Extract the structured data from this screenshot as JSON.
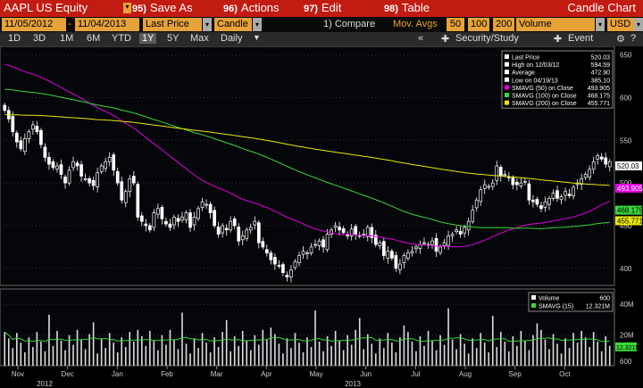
{
  "header": {
    "security": "AAPL US Equity",
    "menu": [
      {
        "num": "95)",
        "label": "Save As"
      },
      {
        "num": "96)",
        "label": "Actions"
      },
      {
        "num": "97)",
        "label": "Edit"
      },
      {
        "num": "98)",
        "label": "Table"
      }
    ],
    "title": "Candle Chart"
  },
  "controls": {
    "start_date": "11/05/2012",
    "end_date": "11/04/2013",
    "price_field": "Last Price",
    "chart_type": "Candle",
    "compare": "1) Compare",
    "mov_avgs_label": "Mov. Avgs",
    "mov_avgs": [
      "50",
      "100",
      "200"
    ],
    "volume_field": "Volume",
    "currency": "USD"
  },
  "toolbar": {
    "ranges": [
      "1D",
      "3D",
      "1M",
      "6M",
      "YTD",
      "1Y",
      "5Y",
      "Max"
    ],
    "active_range": "1Y",
    "period": "Daily",
    "collapse": "«",
    "security_study": "Security/Study",
    "event": "Event"
  },
  "colors": {
    "price": "#ffffff",
    "sma50": "#e000e0",
    "sma100": "#3ad63a",
    "sma200": "#e8e800",
    "vol_sma": "#3ad63a"
  },
  "legend_price": [
    {
      "label": "Last Price",
      "value": "520.03"
    },
    {
      "label": "High on 12/03/12",
      "value": "594.59"
    },
    {
      "label": "Average",
      "value": "472.90"
    },
    {
      "label": "Low on 04/19/13",
      "value": "385.10"
    },
    {
      "label": "SMAVG (50) on Close",
      "value": "493.905",
      "color": "#e000e0"
    },
    {
      "label": "SMAVG (100) on Close",
      "value": "468.175",
      "color": "#3ad63a"
    },
    {
      "label": "SMAVG (200) on Close",
      "value": "455.771",
      "color": "#e8e800"
    }
  ],
  "legend_volume": [
    {
      "label": "Volume",
      "value": "600"
    },
    {
      "label": "SMAVG (15)",
      "value": "12.321M",
      "color": "#3ad63a"
    }
  ],
  "price_axis": {
    "ticks": [
      "650",
      "600",
      "550",
      "500",
      "450",
      "400"
    ]
  },
  "price_tags": [
    {
      "value": "520.03",
      "price": 520.03,
      "bg": "#ffffff",
      "fg": "#000000"
    },
    {
      "value": "493.905",
      "price": 493.905,
      "bg": "#e000e0",
      "fg": "#ffffff"
    },
    {
      "value": "468.175",
      "price": 468.175,
      "bg": "#3ad63a",
      "fg": "#000000"
    },
    {
      "value": "455.771",
      "price": 455.771,
      "bg": "#e8e800",
      "fg": "#000000"
    }
  ],
  "volume_axis": {
    "ticks": [
      "40M",
      "20M",
      "600"
    ]
  },
  "volume_tag": {
    "value": "12.321M"
  },
  "x_axis": {
    "months": [
      "Nov",
      "Dec",
      "Jan",
      "Feb",
      "Mar",
      "Apr",
      "May",
      "Jun",
      "Jul",
      "Aug",
      "Sep",
      "Oct"
    ],
    "years": [
      "2012",
      "2013"
    ]
  },
  "chart_data": {
    "type": "candlestick",
    "ylim": [
      380,
      660
    ],
    "close": [
      585,
      575,
      560,
      548,
      540,
      552,
      560,
      568,
      560,
      545,
      530,
      522,
      518,
      520,
      510,
      500,
      515,
      525,
      520,
      508,
      505,
      500,
      497,
      512,
      520,
      525,
      530,
      515,
      500,
      480,
      490,
      505,
      500,
      460,
      455,
      450,
      445,
      465,
      470,
      458,
      452,
      448,
      460,
      455,
      460,
      465,
      448,
      460,
      470,
      478,
      475,
      465,
      450,
      440,
      450,
      445,
      455,
      450,
      432,
      438,
      445,
      448,
      455,
      430,
      425,
      418,
      410,
      405,
      403,
      395,
      390,
      398,
      408,
      415,
      420,
      418,
      425,
      428,
      432,
      425,
      440,
      445,
      450,
      445,
      442,
      438,
      446,
      440,
      438,
      440,
      448,
      436,
      428,
      430,
      415,
      420,
      412,
      400,
      405,
      415,
      418,
      420,
      425,
      428,
      430,
      428,
      432,
      420,
      425,
      430,
      438,
      440,
      445,
      440,
      448,
      455,
      468,
      480,
      492,
      498,
      496,
      500,
      520,
      508,
      510,
      506,
      498,
      498,
      500,
      502,
      480,
      478,
      475,
      470,
      478,
      482,
      488,
      482,
      484,
      490,
      485,
      495,
      500,
      505,
      510,
      516,
      525,
      532,
      528,
      522,
      525
    ]
  }
}
